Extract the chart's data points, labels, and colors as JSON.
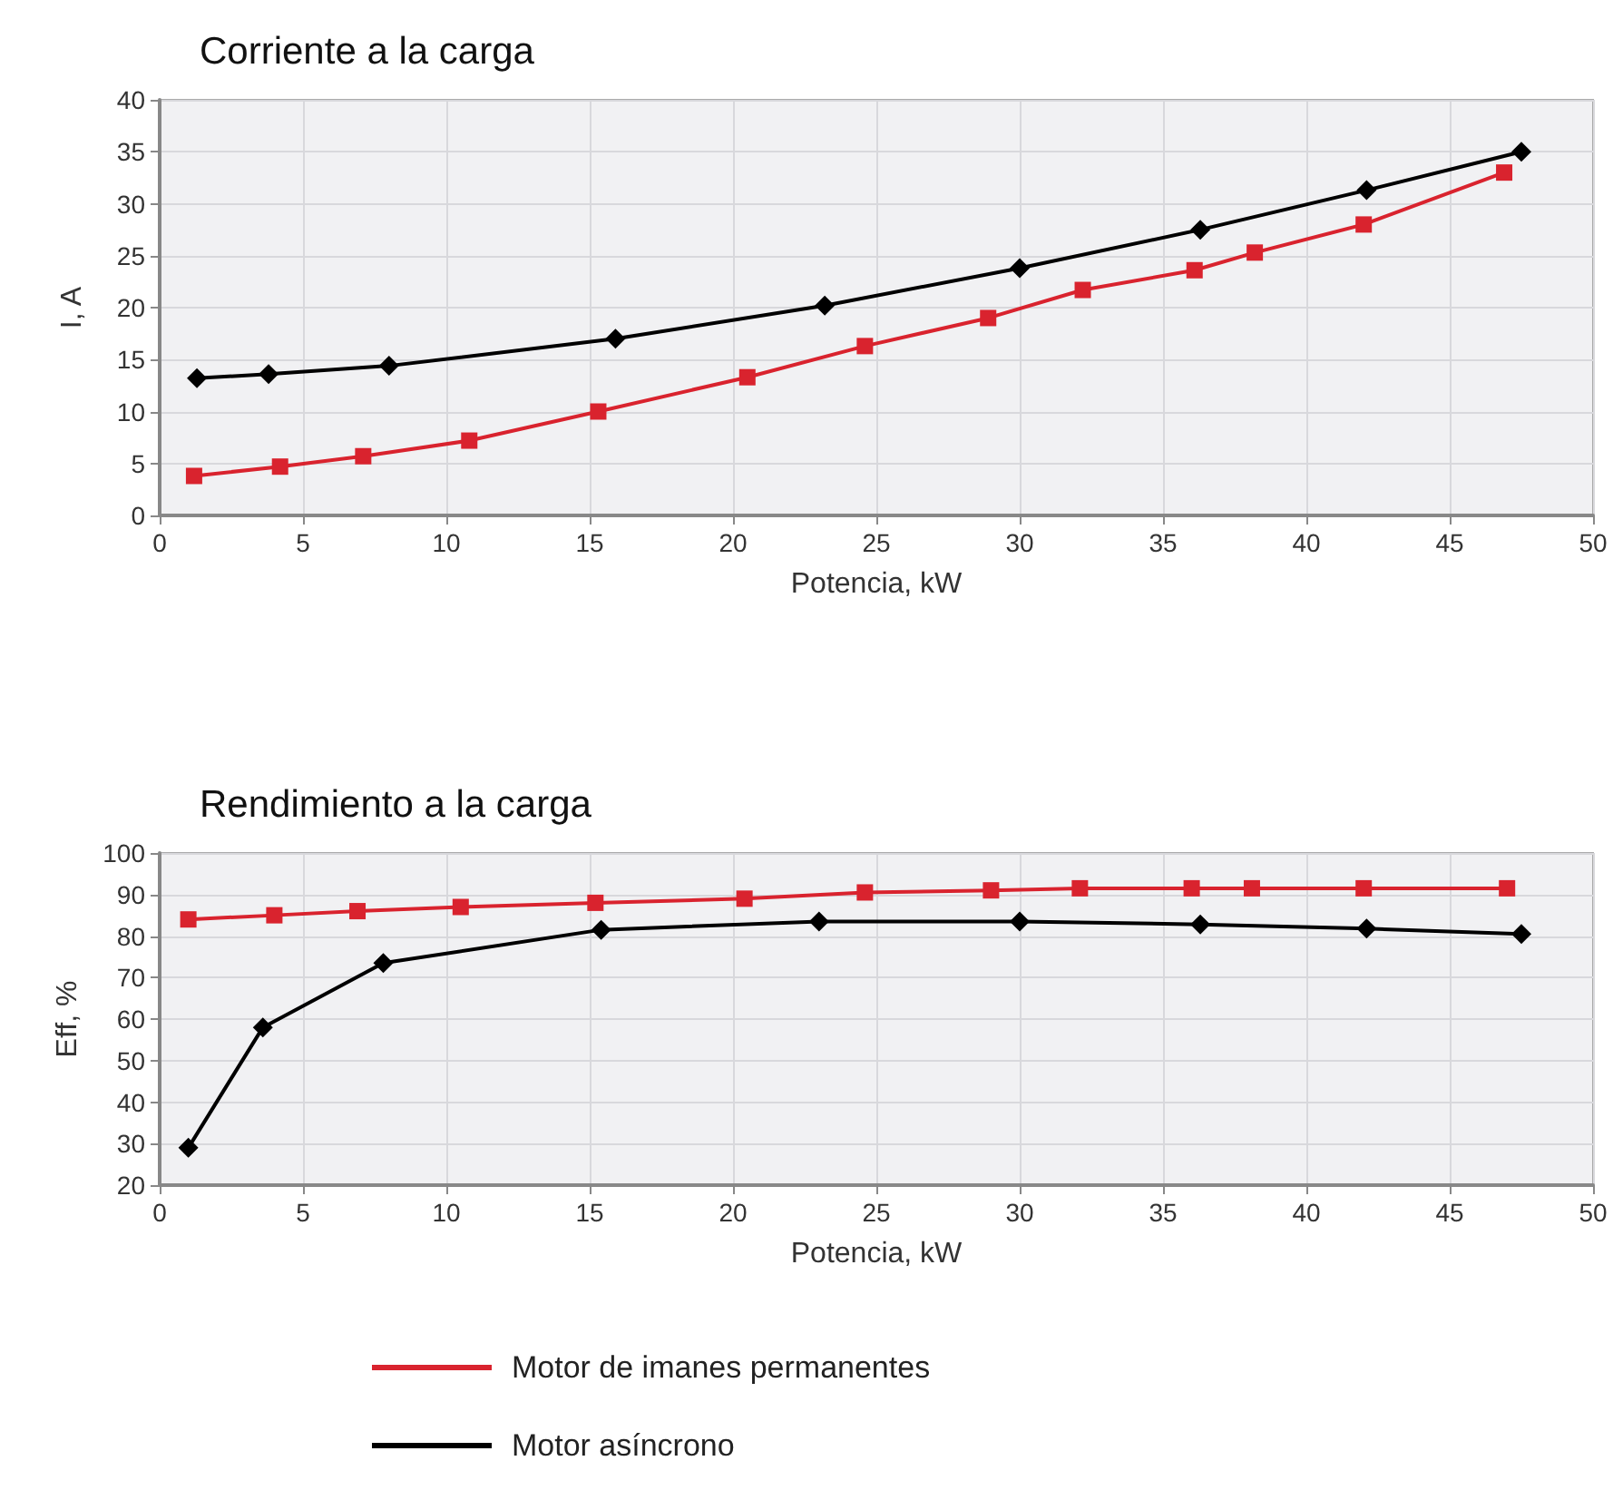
{
  "chart_data": [
    {
      "type": "line",
      "title": "Corriente a la carga",
      "xlabel": "Potencia, kW",
      "ylabel": "I, A",
      "xlim": [
        0,
        50
      ],
      "xticks": [
        0,
        5,
        10,
        15,
        20,
        25,
        30,
        35,
        40,
        45,
        50
      ],
      "ylim": [
        0,
        40
      ],
      "yticks": [
        0,
        5,
        10,
        15,
        20,
        25,
        30,
        35,
        40
      ],
      "grid": true,
      "line_style": "solid",
      "series": [
        {
          "color": "#d9232e",
          "marker": "square",
          "x": [
            1.2,
            4.2,
            7.1,
            10.8,
            15.3,
            20.5,
            24.6,
            28.9,
            32.2,
            36.1,
            38.2,
            42.0,
            46.9
          ],
          "values": [
            3.8,
            4.7,
            5.7,
            7.2,
            10,
            13.3,
            16.3,
            19,
            21.7,
            23.6,
            25.3,
            28,
            33
          ]
        },
        {
          "color": "#000000",
          "marker": "diamond",
          "x": [
            1.3,
            3.8,
            8.0,
            15.9,
            23.2,
            30.0,
            36.3,
            42.1,
            47.5
          ],
          "values": [
            13.2,
            13.6,
            14.4,
            17,
            20.2,
            23.8,
            27.5,
            31.3,
            35
          ]
        }
      ]
    },
    {
      "type": "line",
      "title": "Rendimiento a la carga",
      "xlabel": "Potencia, kW",
      "ylabel": "Eff, %",
      "xlim": [
        0,
        50
      ],
      "xticks": [
        0,
        5,
        10,
        15,
        20,
        25,
        30,
        35,
        40,
        45,
        50
      ],
      "ylim": [
        20,
        100
      ],
      "yticks": [
        20,
        30,
        40,
        50,
        60,
        70,
        80,
        90,
        100
      ],
      "grid": true,
      "line_style": "solid",
      "legend": "bottom",
      "series": [
        {
          "name": "Motor de imanes permanentes",
          "color": "#d9232e",
          "marker": "square",
          "x": [
            1.0,
            4.0,
            6.9,
            10.5,
            15.2,
            20.4,
            24.6,
            29.0,
            32.1,
            36.0,
            38.1,
            42.0,
            47.0
          ],
          "values": [
            84,
            85,
            86,
            87,
            88,
            89,
            90.5,
            91,
            91.5,
            91.5,
            91.5,
            91.5,
            91.5
          ]
        },
        {
          "name": "Motor asíncrono",
          "color": "#000000",
          "marker": "diamond",
          "x": [
            1.0,
            3.6,
            7.8,
            15.4,
            23.0,
            30.0,
            36.3,
            42.1,
            47.5
          ],
          "values": [
            29,
            58,
            73.5,
            81.5,
            83.5,
            83.5,
            82.8,
            81.8,
            80.5
          ]
        }
      ]
    }
  ]
}
